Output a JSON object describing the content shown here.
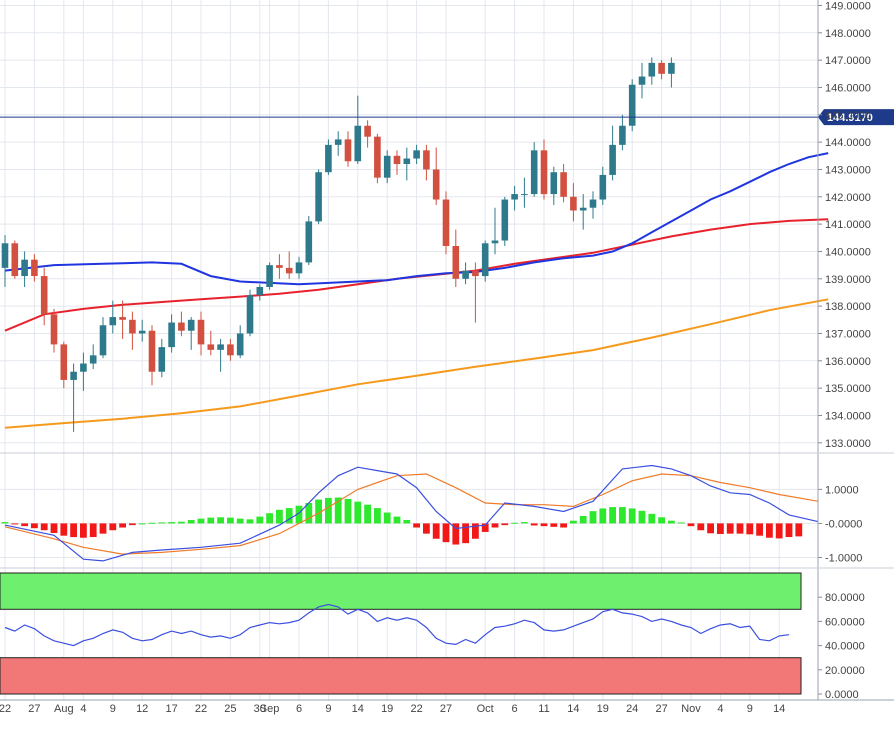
{
  "chart_data": {
    "type": "candlestick",
    "price_axis": {
      "ylim": [
        132.7,
        149.2
      ],
      "ticks": [
        "133.0000",
        "134.0000",
        "135.0000",
        "136.0000",
        "137.0000",
        "138.0000",
        "139.0000",
        "140.0000",
        "141.0000",
        "142.0000",
        "143.0000",
        "144.0000",
        "145.0000",
        "146.0000",
        "147.0000",
        "148.0000",
        "149.0000"
      ],
      "current_price_label": "144.9170",
      "current_price": 144.917
    },
    "x_axis": {
      "labels": [
        {
          "text": "22",
          "i": 0
        },
        {
          "text": "27",
          "i": 3
        },
        {
          "text": "Aug",
          "i": 6
        },
        {
          "text": "4",
          "i": 8
        },
        {
          "text": "9",
          "i": 11
        },
        {
          "text": "12",
          "i": 14
        },
        {
          "text": "17",
          "i": 17
        },
        {
          "text": "22",
          "i": 20
        },
        {
          "text": "25",
          "i": 23
        },
        {
          "text": "30",
          "i": 26
        },
        {
          "text": "Sep",
          "i": 27
        },
        {
          "text": "6",
          "i": 30
        },
        {
          "text": "9",
          "i": 33
        },
        {
          "text": "14",
          "i": 36
        },
        {
          "text": "19",
          "i": 39
        },
        {
          "text": "22",
          "i": 42
        },
        {
          "text": "27",
          "i": 45
        },
        {
          "text": "Oct",
          "i": 49
        },
        {
          "text": "6",
          "i": 52
        },
        {
          "text": "11",
          "i": 55
        },
        {
          "text": "14",
          "i": 58
        },
        {
          "text": "19",
          "i": 61
        },
        {
          "text": "24",
          "i": 64
        },
        {
          "text": "27",
          "i": 67
        },
        {
          "text": "Nov",
          "i": 70
        },
        {
          "text": "4",
          "i": 73
        },
        {
          "text": "9",
          "i": 76
        },
        {
          "text": "14",
          "i": 79
        }
      ]
    },
    "candles": [
      [
        139.4,
        140.6,
        138.7,
        140.3
      ],
      [
        140.3,
        140.4,
        139.0,
        139.1
      ],
      [
        139.1,
        140.0,
        138.7,
        139.7
      ],
      [
        139.7,
        139.9,
        138.9,
        139.1
      ],
      [
        139.1,
        139.4,
        137.3,
        137.7
      ],
      [
        137.7,
        137.9,
        136.3,
        136.6
      ],
      [
        136.6,
        136.7,
        135.0,
        135.3
      ],
      [
        135.3,
        135.9,
        133.4,
        135.6
      ],
      [
        135.6,
        136.3,
        134.9,
        135.9
      ],
      [
        135.9,
        136.6,
        135.7,
        136.2
      ],
      [
        136.2,
        137.6,
        136.1,
        137.3
      ],
      [
        137.3,
        138.2,
        137.0,
        137.6
      ],
      [
        137.6,
        138.2,
        136.8,
        137.5
      ],
      [
        137.5,
        137.8,
        136.4,
        137.0
      ],
      [
        137.0,
        137.5,
        136.7,
        137.1
      ],
      [
        137.1,
        137.3,
        135.1,
        135.6
      ],
      [
        135.6,
        136.8,
        135.4,
        136.5
      ],
      [
        136.5,
        137.7,
        136.3,
        137.4
      ],
      [
        137.4,
        137.8,
        136.9,
        137.1
      ],
      [
        137.1,
        137.6,
        136.4,
        137.5
      ],
      [
        137.5,
        137.8,
        136.2,
        136.6
      ],
      [
        136.6,
        137.1,
        136.2,
        136.4
      ],
      [
        136.4,
        136.8,
        135.6,
        136.6
      ],
      [
        136.6,
        136.8,
        136.0,
        136.2
      ],
      [
        136.2,
        137.3,
        136.1,
        137.0
      ],
      [
        137.0,
        138.6,
        136.9,
        138.4
      ],
      [
        138.4,
        138.8,
        138.2,
        138.7
      ],
      [
        138.7,
        139.6,
        138.6,
        139.5
      ],
      [
        139.5,
        139.9,
        139.0,
        139.4
      ],
      [
        139.4,
        140.0,
        139.0,
        139.2
      ],
      [
        139.2,
        139.8,
        139.0,
        139.6
      ],
      [
        139.6,
        141.3,
        139.5,
        141.1
      ],
      [
        141.1,
        143.0,
        141.0,
        142.9
      ],
      [
        142.9,
        144.1,
        142.8,
        143.9
      ],
      [
        143.9,
        144.4,
        143.5,
        144.1
      ],
      [
        144.1,
        144.4,
        143.1,
        143.3
      ],
      [
        143.3,
        145.7,
        143.2,
        144.6
      ],
      [
        144.6,
        144.8,
        143.8,
        144.2
      ],
      [
        144.2,
        144.3,
        142.5,
        142.7
      ],
      [
        142.7,
        143.7,
        142.5,
        143.5
      ],
      [
        143.5,
        143.7,
        142.8,
        143.2
      ],
      [
        143.2,
        143.8,
        142.6,
        143.4
      ],
      [
        143.4,
        143.9,
        143.2,
        143.7
      ],
      [
        143.7,
        143.9,
        142.6,
        143.0
      ],
      [
        143.0,
        143.8,
        141.7,
        141.9
      ],
      [
        141.9,
        142.2,
        139.9,
        140.2
      ],
      [
        140.2,
        140.8,
        138.7,
        139.0
      ],
      [
        139.0,
        139.6,
        138.8,
        139.3
      ],
      [
        139.3,
        139.6,
        137.4,
        139.1
      ],
      [
        139.1,
        140.4,
        138.9,
        140.3
      ],
      [
        140.3,
        141.6,
        139.9,
        140.4
      ],
      [
        140.4,
        142.0,
        140.2,
        141.9
      ],
      [
        141.9,
        142.4,
        141.5,
        142.1
      ],
      [
        142.1,
        142.7,
        141.6,
        142.1
      ],
      [
        142.1,
        144.0,
        142.0,
        143.7
      ],
      [
        143.7,
        144.1,
        141.9,
        142.1
      ],
      [
        142.1,
        143.1,
        141.7,
        142.9
      ],
      [
        142.9,
        143.2,
        141.8,
        142.0
      ],
      [
        142.0,
        142.5,
        141.1,
        141.5
      ],
      [
        141.5,
        142.1,
        140.8,
        141.6
      ],
      [
        141.6,
        142.2,
        141.2,
        141.9
      ],
      [
        141.9,
        143.1,
        141.7,
        142.8
      ],
      [
        142.8,
        144.6,
        142.6,
        143.9
      ],
      [
        143.9,
        145.0,
        143.7,
        144.6
      ],
      [
        144.6,
        146.3,
        144.4,
        146.1
      ],
      [
        146.1,
        146.9,
        145.6,
        146.4
      ],
      [
        146.4,
        147.1,
        146.1,
        146.9
      ],
      [
        146.9,
        147.0,
        146.3,
        146.5
      ],
      [
        146.5,
        147.1,
        146.0,
        146.9
      ]
    ],
    "ma_fast": [
      [
        0,
        139.3
      ],
      [
        5,
        139.5
      ],
      [
        10,
        139.55
      ],
      [
        15,
        139.6
      ],
      [
        18,
        139.55
      ],
      [
        21,
        139.1
      ],
      [
        24,
        138.9
      ],
      [
        27,
        138.85
      ],
      [
        30,
        138.8
      ],
      [
        33,
        138.85
      ],
      [
        36,
        138.9
      ],
      [
        39,
        138.95
      ],
      [
        42,
        139.1
      ],
      [
        45,
        139.2
      ],
      [
        48,
        139.25
      ],
      [
        51,
        139.4
      ],
      [
        54,
        139.6
      ],
      [
        57,
        139.75
      ],
      [
        60,
        139.85
      ],
      [
        62,
        140.0
      ],
      [
        64,
        140.3
      ],
      [
        66,
        140.7
      ],
      [
        68,
        141.1
      ],
      [
        70,
        141.5
      ],
      [
        72,
        141.9
      ],
      [
        74,
        142.2
      ],
      [
        76,
        142.55
      ],
      [
        78,
        142.9
      ],
      [
        80,
        143.2
      ],
      [
        82,
        143.45
      ],
      [
        84,
        143.6
      ]
    ],
    "ma_mid": [
      [
        0,
        137.1
      ],
      [
        4,
        137.7
      ],
      [
        8,
        137.9
      ],
      [
        12,
        138.05
      ],
      [
        16,
        138.15
      ],
      [
        20,
        138.25
      ],
      [
        24,
        138.35
      ],
      [
        28,
        138.45
      ],
      [
        32,
        138.6
      ],
      [
        36,
        138.8
      ],
      [
        40,
        139.0
      ],
      [
        44,
        139.15
      ],
      [
        48,
        139.3
      ],
      [
        52,
        139.55
      ],
      [
        56,
        139.75
      ],
      [
        60,
        139.95
      ],
      [
        64,
        140.25
      ],
      [
        68,
        140.55
      ],
      [
        72,
        140.8
      ],
      [
        76,
        141.0
      ],
      [
        80,
        141.12
      ],
      [
        84,
        141.18
      ]
    ],
    "ma_slow": [
      [
        0,
        133.55
      ],
      [
        6,
        133.72
      ],
      [
        12,
        133.88
      ],
      [
        18,
        134.08
      ],
      [
        24,
        134.33
      ],
      [
        30,
        134.73
      ],
      [
        36,
        135.14
      ],
      [
        42,
        135.45
      ],
      [
        48,
        135.78
      ],
      [
        54,
        136.08
      ],
      [
        60,
        136.39
      ],
      [
        66,
        136.85
      ],
      [
        72,
        137.34
      ],
      [
        78,
        137.85
      ],
      [
        84,
        138.25
      ]
    ],
    "macd_panel": {
      "ylim": [
        -1.25,
        1.95
      ],
      "ticks": [
        "1.0000",
        "-0.0000",
        "-1.0000"
      ],
      "histogram": [
        0.04,
        -0.02,
        -0.08,
        -0.14,
        -0.2,
        -0.28,
        -0.36,
        -0.4,
        -0.42,
        -0.4,
        -0.3,
        -0.2,
        -0.12,
        -0.05,
        0.0,
        0.02,
        0.03,
        0.04,
        0.05,
        0.1,
        0.14,
        0.17,
        0.18,
        0.17,
        0.14,
        0.12,
        0.2,
        0.3,
        0.4,
        0.45,
        0.52,
        0.6,
        0.7,
        0.75,
        0.76,
        0.72,
        0.64,
        0.55,
        0.45,
        0.32,
        0.2,
        0.1,
        -0.12,
        -0.3,
        -0.45,
        -0.55,
        -0.62,
        -0.58,
        -0.45,
        -0.25,
        -0.12,
        -0.05,
        0.02,
        0.04,
        -0.06,
        -0.08,
        -0.1,
        -0.12,
        0.08,
        0.22,
        0.36,
        0.44,
        0.48,
        0.48,
        0.44,
        0.37,
        0.28,
        0.18,
        0.08,
        0.03,
        -0.08,
        -0.2,
        -0.29,
        -0.31,
        -0.3,
        -0.3,
        -0.32,
        -0.36,
        -0.42,
        -0.44,
        -0.4,
        -0.38
      ],
      "macd_line": [
        [
          0,
          -0.05
        ],
        [
          5,
          -0.35
        ],
        [
          8,
          -1.05
        ],
        [
          10,
          -1.1
        ],
        [
          13,
          -0.85
        ],
        [
          16,
          -0.78
        ],
        [
          20,
          -0.7
        ],
        [
          24,
          -0.58
        ],
        [
          28,
          -0.05
        ],
        [
          30,
          0.3
        ],
        [
          32,
          0.9
        ],
        [
          34,
          1.4
        ],
        [
          36,
          1.65
        ],
        [
          38,
          1.55
        ],
        [
          40,
          1.45
        ],
        [
          42,
          1.05
        ],
        [
          44,
          0.35
        ],
        [
          46,
          -0.15
        ],
        [
          49,
          -0.05
        ],
        [
          51,
          0.6
        ],
        [
          54,
          0.5
        ],
        [
          57,
          0.35
        ],
        [
          60,
          0.65
        ],
        [
          63,
          1.6
        ],
        [
          66,
          1.7
        ],
        [
          68,
          1.6
        ],
        [
          70,
          1.4
        ],
        [
          72,
          1.1
        ],
        [
          74,
          0.9
        ],
        [
          76,
          0.85
        ],
        [
          78,
          0.6
        ],
        [
          80,
          0.25
        ],
        [
          83,
          0.05
        ]
      ],
      "signal_line": [
        [
          0,
          -0.1
        ],
        [
          5,
          -0.45
        ],
        [
          8,
          -0.7
        ],
        [
          12,
          -0.9
        ],
        [
          16,
          -0.85
        ],
        [
          20,
          -0.76
        ],
        [
          24,
          -0.65
        ],
        [
          28,
          -0.3
        ],
        [
          32,
          0.3
        ],
        [
          36,
          1.0
        ],
        [
          40,
          1.4
        ],
        [
          43,
          1.45
        ],
        [
          46,
          1.05
        ],
        [
          49,
          0.6
        ],
        [
          52,
          0.55
        ],
        [
          55,
          0.55
        ],
        [
          58,
          0.5
        ],
        [
          61,
          0.85
        ],
        [
          64,
          1.25
        ],
        [
          67,
          1.45
        ],
        [
          70,
          1.4
        ],
        [
          73,
          1.2
        ],
        [
          76,
          1.05
        ],
        [
          79,
          0.85
        ],
        [
          83,
          0.65
        ]
      ]
    },
    "rsi_panel": {
      "ylim": [
        0,
        100
      ],
      "ticks": [
        "80.0000",
        "60.0000",
        "40.0000",
        "20.0000",
        "0.0000"
      ],
      "overbought_band": [
        70,
        100
      ],
      "oversold_band": [
        0,
        30
      ],
      "rsi_line": [
        [
          0,
          55
        ],
        [
          1,
          52
        ],
        [
          2,
          57
        ],
        [
          3,
          54
        ],
        [
          4,
          48
        ],
        [
          5,
          44
        ],
        [
          6,
          42
        ],
        [
          7,
          40
        ],
        [
          8,
          44
        ],
        [
          9,
          46
        ],
        [
          10,
          50
        ],
        [
          11,
          53
        ],
        [
          12,
          51
        ],
        [
          13,
          46
        ],
        [
          14,
          44
        ],
        [
          15,
          45
        ],
        [
          16,
          49
        ],
        [
          17,
          52
        ],
        [
          18,
          50
        ],
        [
          19,
          52
        ],
        [
          20,
          49
        ],
        [
          21,
          47
        ],
        [
          22,
          48
        ],
        [
          23,
          46
        ],
        [
          24,
          49
        ],
        [
          25,
          55
        ],
        [
          26,
          57
        ],
        [
          27,
          59
        ],
        [
          28,
          58
        ],
        [
          29,
          59
        ],
        [
          30,
          61
        ],
        [
          31,
          67
        ],
        [
          32,
          72
        ],
        [
          33,
          74
        ],
        [
          34,
          72
        ],
        [
          35,
          66
        ],
        [
          36,
          70
        ],
        [
          37,
          67
        ],
        [
          38,
          60
        ],
        [
          39,
          63
        ],
        [
          40,
          61
        ],
        [
          41,
          63
        ],
        [
          42,
          61
        ],
        [
          43,
          55
        ],
        [
          44,
          46
        ],
        [
          45,
          42
        ],
        [
          46,
          41
        ],
        [
          47,
          45
        ],
        [
          48,
          42
        ],
        [
          49,
          49
        ],
        [
          50,
          55
        ],
        [
          51,
          56
        ],
        [
          52,
          58
        ],
        [
          53,
          61
        ],
        [
          54,
          59
        ],
        [
          55,
          53
        ],
        [
          56,
          52
        ],
        [
          57,
          53
        ],
        [
          58,
          56
        ],
        [
          59,
          59
        ],
        [
          60,
          62
        ],
        [
          61,
          68
        ],
        [
          62,
          70
        ],
        [
          63,
          67
        ],
        [
          64,
          66
        ],
        [
          65,
          64
        ],
        [
          66,
          60
        ],
        [
          67,
          62
        ],
        [
          68,
          60
        ],
        [
          69,
          57
        ],
        [
          70,
          55
        ],
        [
          71,
          50
        ],
        [
          72,
          54
        ],
        [
          73,
          57
        ],
        [
          74,
          58
        ],
        [
          75,
          55
        ],
        [
          76,
          56
        ],
        [
          77,
          45
        ],
        [
          78,
          44
        ],
        [
          79,
          48
        ],
        [
          80,
          49
        ]
      ]
    },
    "colors": {
      "bull": "#2e7a8c",
      "bear": "#d1503f",
      "ma_fast": "#1f35e0",
      "ma_mid": "#e8222c",
      "ma_slow": "#f59a1c",
      "hist_pos": "#2ee82e",
      "hist_neg": "#f21818",
      "macd_line": "#3a4fe0",
      "signal_line": "#f07b2a",
      "rsi_line": "#3a4fe0",
      "rsi_overbought": "#6ef06e",
      "rsi_oversold": "#f27878",
      "price_line": "#1e3a8a",
      "grid": "#e3e7ee",
      "axis_text": "#444444"
    }
  }
}
